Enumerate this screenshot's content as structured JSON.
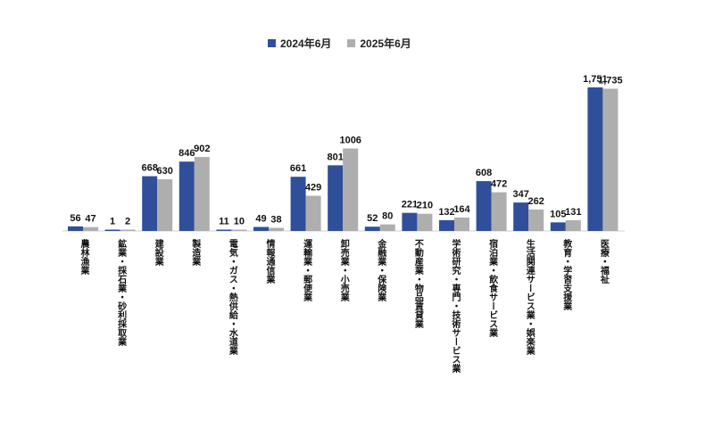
{
  "chart_data": {
    "type": "bar",
    "categories": [
      "農林漁業",
      "鉱業・採石業・砂利採取業",
      "建設業",
      "製造業",
      "電気・ガス・熱供給・水道業",
      "情報通信業",
      "運輸業・郵便業",
      "卸売業・小売業",
      "金融業・保険業",
      "不動産業・物品賃貸業",
      "学術研究・専門・技術サービス業",
      "宿泊業・飲食サービス業",
      "生活関連サービス業・娯楽業",
      "教育・学習支援業",
      "医療・福祉"
    ],
    "series": [
      {
        "name": "2024年6月",
        "color": "#2f4f9a",
        "values": [
          56,
          1,
          668,
          846,
          11,
          49,
          661,
          801,
          52,
          221,
          132,
          608,
          347,
          105,
          1751
        ],
        "labels": [
          "56",
          "1",
          "668",
          "846",
          "11",
          "49",
          "661",
          "801",
          "52",
          "221",
          "132",
          "608",
          "347",
          "105",
          "1,751"
        ]
      },
      {
        "name": "2025年6月",
        "color": "#aeaeae",
        "values": [
          47,
          2,
          630,
          902,
          10,
          38,
          429,
          1006,
          80,
          210,
          164,
          472,
          262,
          131,
          1735
        ],
        "labels": [
          "47",
          "2",
          "630",
          "902",
          "10",
          "38",
          "429",
          "1006",
          "80",
          "210",
          "164",
          "472",
          "262",
          "131",
          "1,735"
        ]
      }
    ],
    "ylim": [
      0,
      1800
    ],
    "legend": "top-center",
    "grid": false
  }
}
